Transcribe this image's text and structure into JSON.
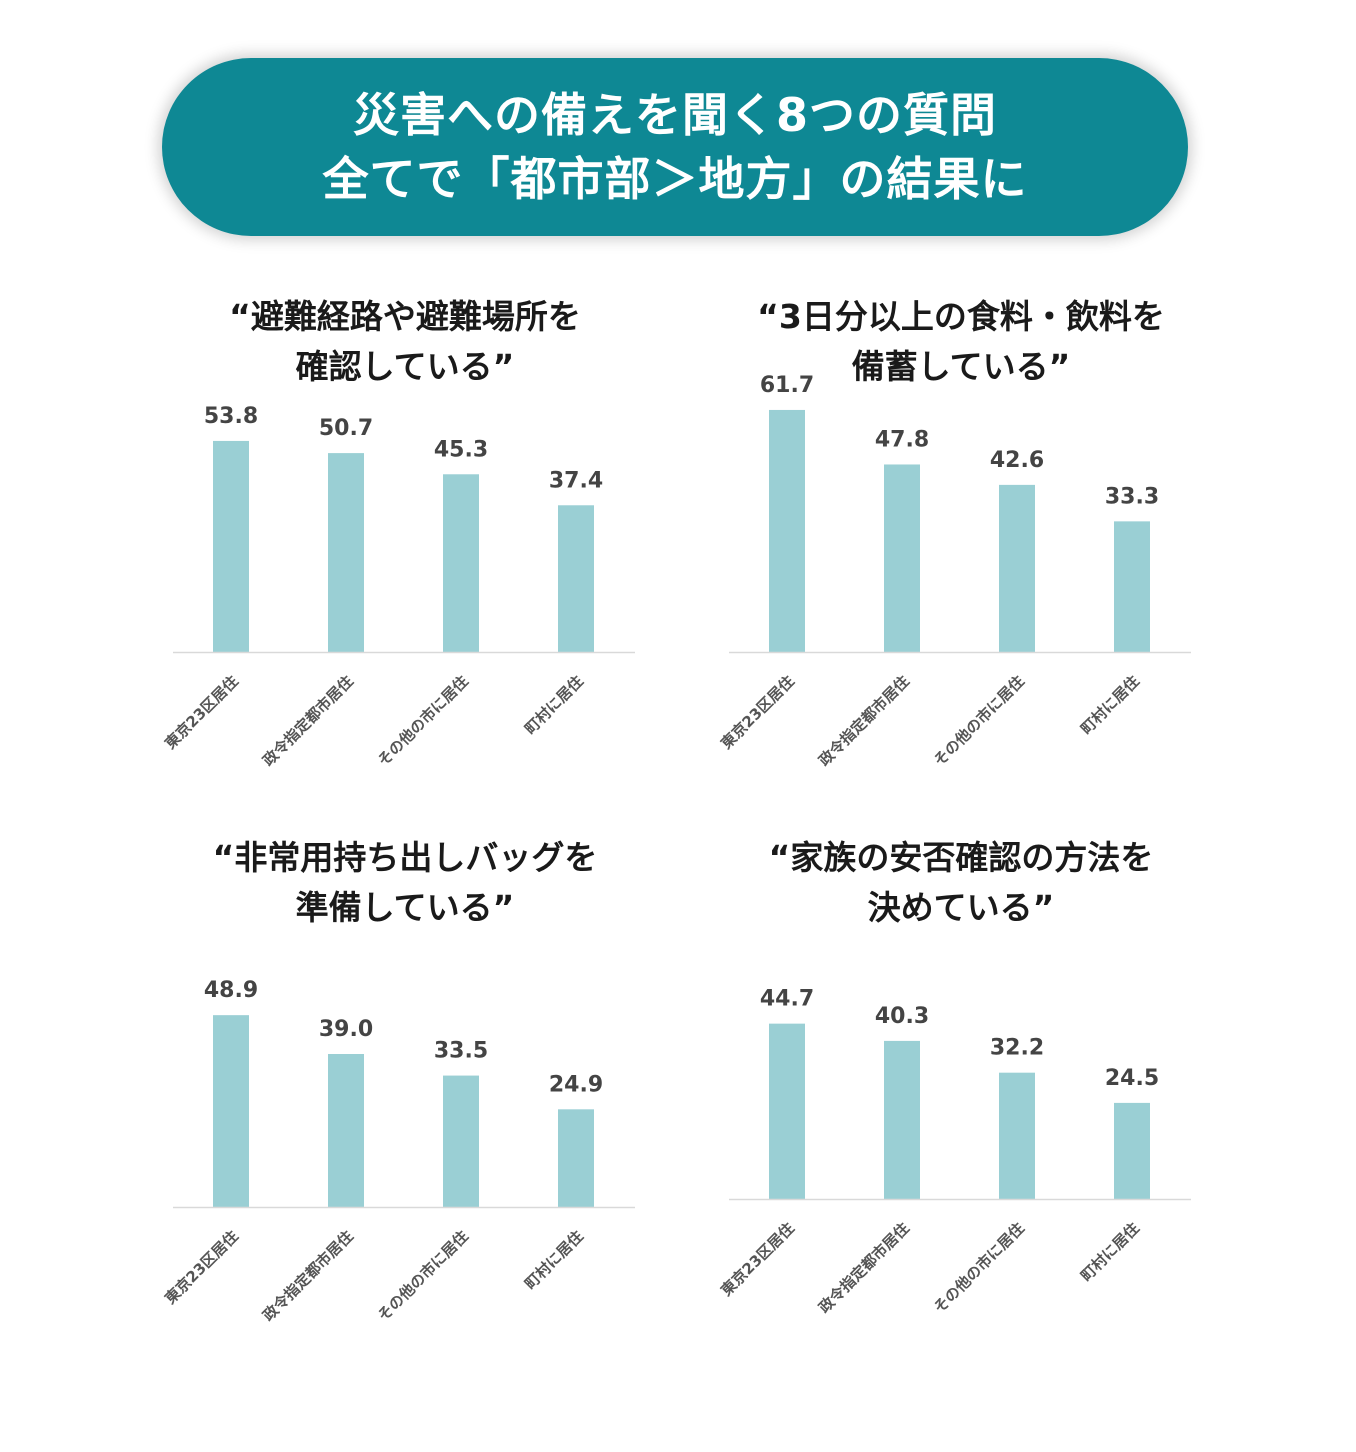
{
  "header": {
    "line1": "災害への備えを聞く8つの質問",
    "line2": "全てで「都市部＞地方」の結果に"
  },
  "colors": {
    "banner": "#0e8894",
    "bar": "#9acfd4",
    "axis": "#d9d9d9"
  },
  "chart_data": [
    {
      "type": "bar",
      "title_lines": [
        "“避難経路や避難場所を",
        "確認している”"
      ],
      "categories": [
        "東京23区居住",
        "政令指定都市居住",
        "その他の市に居住",
        "町村に居住"
      ],
      "values": [
        53.8,
        50.7,
        45.3,
        37.4
      ],
      "ylim": [
        0,
        65
      ],
      "grid": false
    },
    {
      "type": "bar",
      "title_lines": [
        "“3日分以上の食料・飲料を",
        "備蓄している”"
      ],
      "categories": [
        "東京23区居住",
        "政令指定都市居住",
        "その他の市に居住",
        "町村に居住"
      ],
      "values": [
        61.7,
        47.8,
        42.6,
        33.3
      ],
      "ylim": [
        0,
        65
      ],
      "grid": false
    },
    {
      "type": "bar",
      "title_lines": [
        "“非常用持ち出しバッグを",
        "準備している”"
      ],
      "categories": [
        "東京23区居住",
        "政令指定都市居住",
        "その他の市に居住",
        "町村に居住"
      ],
      "values": [
        48.9,
        39.0,
        33.5,
        24.9
      ],
      "ylim": [
        0,
        65
      ],
      "grid": false
    },
    {
      "type": "bar",
      "title_lines": [
        "“家族の安否確認の方法を",
        "決めている”"
      ],
      "categories": [
        "東京23区居住",
        "政令指定都市居住",
        "その他の市に居住",
        "町村に居住"
      ],
      "values": [
        44.7,
        40.3,
        32.2,
        24.5
      ],
      "ylim": [
        0,
        65
      ],
      "grid": false
    }
  ]
}
